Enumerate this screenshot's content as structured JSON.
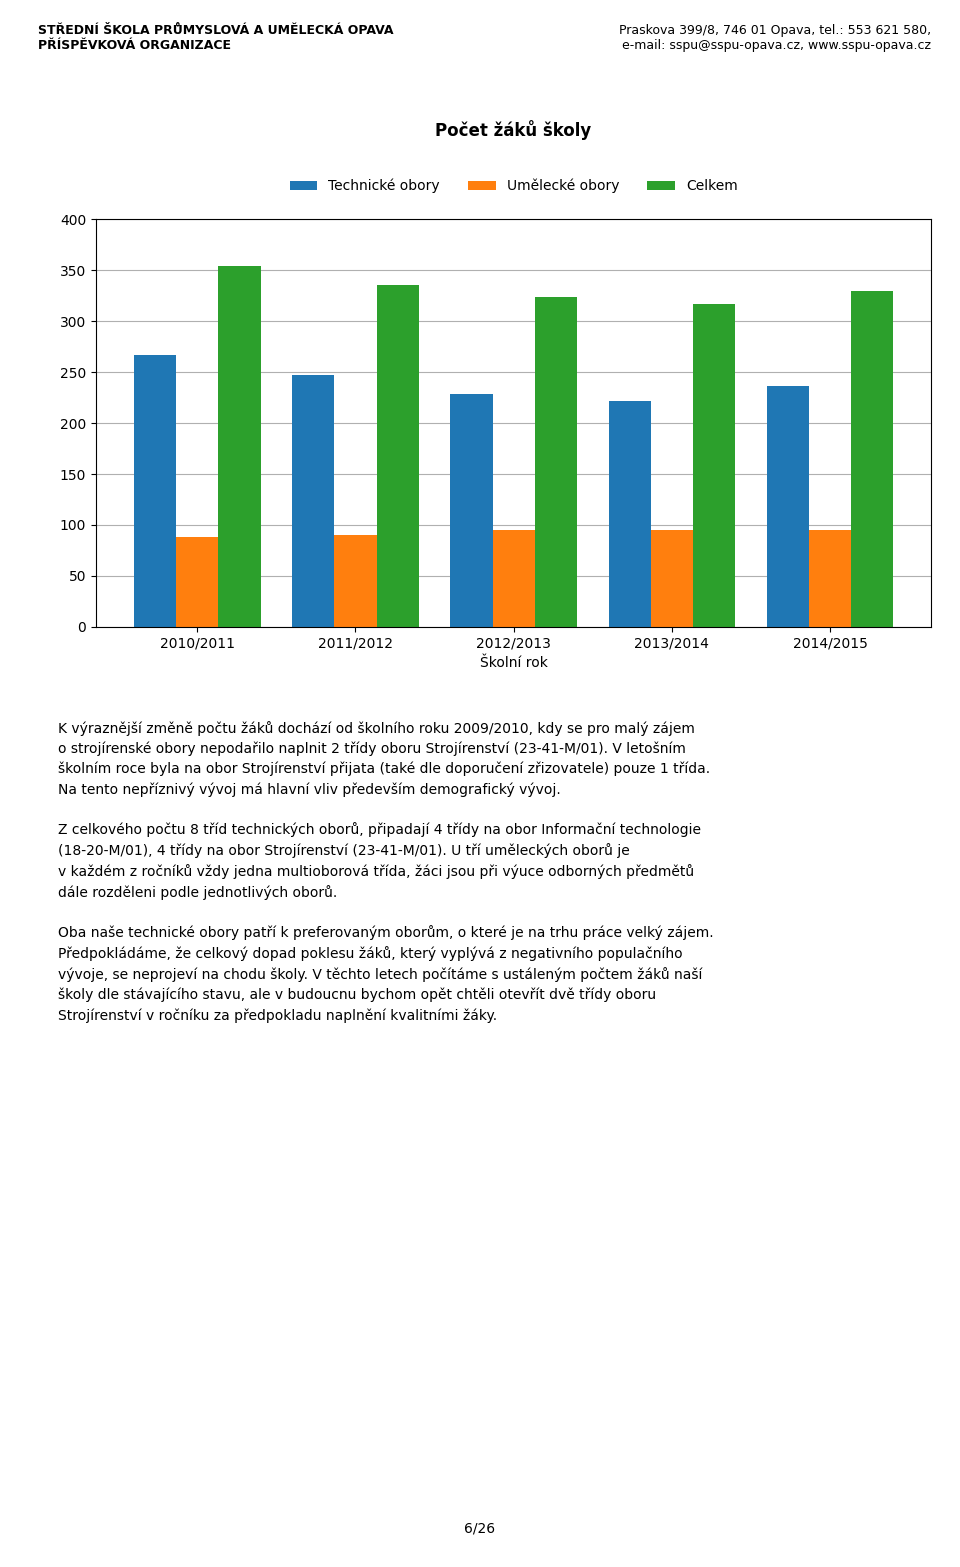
{
  "chart_data": {
    "type": "bar",
    "title": "Počet žáků školy",
    "x_label": "Školní rok",
    "categories": [
      "2010/2011",
      "2011/2012",
      "2012/2013",
      "2013/2014",
      "2014/2015"
    ],
    "series": [
      {
        "name": "Technické obory",
        "values": [
          267,
          247,
          229,
          222,
          236
        ]
      },
      {
        "name": "Umělecké obory",
        "values": [
          88,
          90,
          95,
          95,
          95
        ]
      },
      {
        "name": "Celkem",
        "values": [
          354,
          336,
          324,
          317,
          330
        ]
      }
    ],
    "ylim": [
      0,
      400
    ],
    "yticks": [
      0,
      50,
      100,
      150,
      200,
      250,
      300,
      350,
      400
    ],
    "grid": true,
    "legend": "upper center",
    "annotations": [
      "STŘEDNÍ ŠKOLA PRŮMYSLOVÁ A UMĚLECKÁ OPAVA\nPŘÍSPĚVKOVÁ ORGANIZACE",
      "Praskova 399/8, 746 01 Opava, tel.: 553 621 580,\ne-mail: sspu@sspu-opava.cz, www.sspu-opava.cz",
      "K výraznější změně počtu žáků dochází od školního roku 2009/2010, kdy se pro malý zájem\no strojírenské obory nepodařilo naplnit 2 třídy oboru Strojírenství (23-41-M/01). V letošním\nškolním roce byla na obor Strojírenství přijata (také dle doporučení zřizovatele) pouze 1 třída.\nNa tento nepříznivý vývoj má hlavní vliv především demografický vývoj.\n\nZ celkového počtu 8 tříd technických oborů, připadají 4 třídy na obor Informační technologie\n(18-20-M/01), 4 třídy na obor Strojírenství (23-41-M/01). U tří uměleckých oborů je\nv každém z ročníků vždy jedna multioborová třída, žáci jsou při výuce odborných předmětů\ndále rozděleni podle jednotlivých oborů.\n\nOba naše technické obory patří k preferovaným oborům, o které je na trhu práce velký zájem.\nPředpokládáme, že celkový dopad poklesu žáků, který vyplývá z negativního populačního\nvývoje, se neprojeví na chodu školy. V těchto letech počítáme s ustáleným počtem žáků naší\nškoly dle stávajícího stavu, ale v budoucnu bychom opět chtěli otevřít dvě třídy oboru\nStrojírenství v ročníku za předpokladu naplnění kvalitními žáky.",
      "6/26"
    ]
  }
}
